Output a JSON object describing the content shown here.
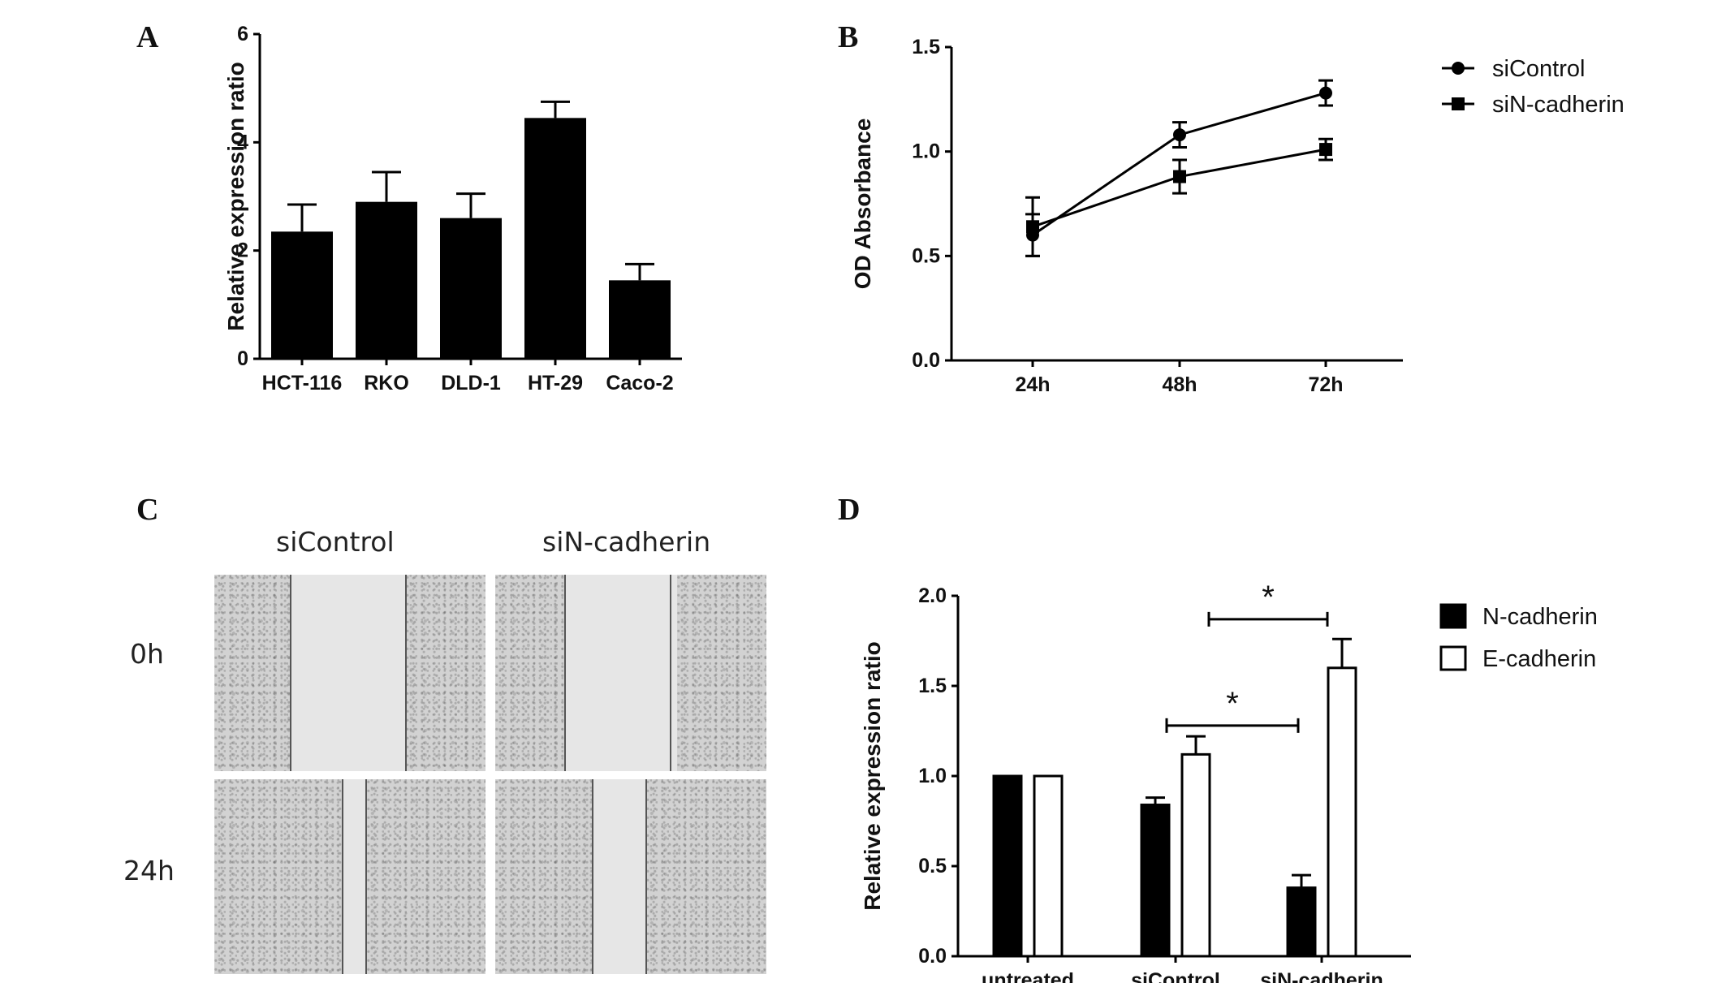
{
  "panels": {
    "A": "A",
    "B": "B",
    "C": "C",
    "D": "D"
  },
  "chart_data": [
    {
      "panel": "A",
      "type": "bar",
      "categories": [
        "HCT-116",
        "RKO",
        "DLD-1",
        "HT-29",
        "Caco-2"
      ],
      "values": [
        2.35,
        2.9,
        2.6,
        4.45,
        1.45
      ],
      "errors": [
        0.5,
        0.55,
        0.45,
        0.3,
        0.3
      ],
      "ylabel": "Relative expression ratio",
      "ylim": [
        0,
        6
      ],
      "yticks": [
        "0",
        "2",
        "4",
        "6"
      ],
      "bar_color": "#000000"
    },
    {
      "panel": "B",
      "type": "line",
      "categories": [
        "24h",
        "48h",
        "72h"
      ],
      "series": [
        {
          "name": "siControl",
          "marker": "circle",
          "values": [
            0.6,
            1.08,
            1.28
          ],
          "errors": [
            0.1,
            0.06,
            0.06
          ]
        },
        {
          "name": "siN-cadherin",
          "marker": "square",
          "values": [
            0.64,
            0.88,
            1.01
          ],
          "errors": [
            0.14,
            0.08,
            0.05
          ]
        }
      ],
      "ylabel": "OD Absorbance",
      "ylim": [
        0,
        1.5
      ],
      "yticks": [
        "0.0",
        "0.5",
        "1.0",
        "1.5"
      ],
      "legend_position": "top-right"
    },
    {
      "panel": "D",
      "type": "bar",
      "categories": [
        "untreated",
        "siControl",
        "siN-cadherin"
      ],
      "series": [
        {
          "name": "N-cadherin",
          "fill": "#000000",
          "values": [
            1.0,
            0.84,
            0.38
          ],
          "errors": [
            0,
            0.04,
            0.07
          ]
        },
        {
          "name": "E-cadherin",
          "fill": "#ffffff",
          "values": [
            1.0,
            1.12,
            1.6
          ],
          "errors": [
            0,
            0.1,
            0.16
          ]
        }
      ],
      "ylabel": "Relative expression ratio",
      "ylim": [
        0,
        2.0
      ],
      "yticks": [
        "0.0",
        "0.5",
        "1.0",
        "1.5",
        "2.0"
      ],
      "significance": [
        "*",
        "*"
      ],
      "legend_position": "top-right"
    }
  ],
  "woundAssay": {
    "columns": [
      "siControl",
      "siN-cadherin"
    ],
    "rows": [
      "0h",
      "24h"
    ]
  }
}
